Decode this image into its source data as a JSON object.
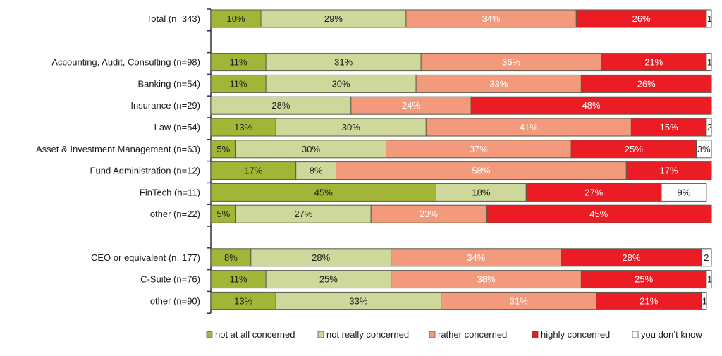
{
  "chart_data": {
    "type": "bar",
    "orientation": "horizontal",
    "stacked": "100%",
    "title": "",
    "xlabel": "",
    "ylabel": "",
    "xlim": [
      0,
      100
    ],
    "grid": false,
    "legend_position": "bottom",
    "series": [
      {
        "name": "not at all concerned",
        "color": "#a3b536",
        "label_color": "#1a1a1a"
      },
      {
        "name": "not really concerned",
        "color": "#cfd89b",
        "label_color": "#1a1a1a"
      },
      {
        "name": "rather concerned",
        "color": "#f39a7c",
        "label_color": "#ffffff"
      },
      {
        "name": "highly concerned",
        "color": "#ec1c24",
        "label_color": "#ffffff"
      },
      {
        "name": "you don’t know",
        "color": "#ffffff",
        "label_color": "#1a1a1a"
      }
    ],
    "groups": [
      {
        "rows": [
          {
            "label": "Total (n=343)",
            "values": [
              10,
              29,
              34,
              26,
              1
            ],
            "labels": [
              "10%",
              "29%",
              "34%",
              "26%",
              "1"
            ]
          }
        ]
      },
      {
        "rows": [
          {
            "label": "Accounting, Audit, Consulting (n=98)",
            "values": [
              11,
              31,
              36,
              21,
              1
            ],
            "labels": [
              "11%",
              "31%",
              "36%",
              "21%",
              "1"
            ]
          },
          {
            "label": "Banking (n=54)",
            "values": [
              11,
              30,
              33,
              26,
              0
            ],
            "labels": [
              "11%",
              "30%",
              "33%",
              "26%",
              ""
            ]
          },
          {
            "label": "Insurance (n=29)",
            "values": [
              0,
              28,
              24,
              48,
              0
            ],
            "labels": [
              "",
              "28%",
              "24%",
              "48%",
              ""
            ]
          },
          {
            "label": "Law (n=54)",
            "values": [
              13,
              30,
              41,
              15,
              2
            ],
            "labels": [
              "13%",
              "30%",
              "41%",
              "15%",
              "2"
            ]
          },
          {
            "label": "Asset & Investment Management (n=63)",
            "values": [
              5,
              30,
              37,
              25,
              3
            ],
            "labels": [
              "5%",
              "30%",
              "37%",
              "25%",
              "3%"
            ]
          },
          {
            "label": "Fund Administration (n=12)",
            "values": [
              17,
              8,
              58,
              17,
              0
            ],
            "labels": [
              "17%",
              "8%",
              "58%",
              "17%",
              ""
            ]
          },
          {
            "label": "FinTech (n=11)",
            "values": [
              45,
              18,
              0,
              27,
              9
            ],
            "labels": [
              "45%",
              "18%",
              "",
              "27%",
              "9%"
            ]
          },
          {
            "label": "other (n=22)",
            "values": [
              5,
              27,
              23,
              45,
              0
            ],
            "labels": [
              "5%",
              "27%",
              "23%",
              "45%",
              ""
            ]
          }
        ]
      },
      {
        "rows": [
          {
            "label": "CEO or equivalent (n=177)",
            "values": [
              8,
              28,
              34,
              28,
              2
            ],
            "labels": [
              "8%",
              "28%",
              "34%",
              "28%",
              "2"
            ]
          },
          {
            "label": "C-Suite (n=76)",
            "values": [
              11,
              25,
              38,
              25,
              1
            ],
            "labels": [
              "11%",
              "25%",
              "38%",
              "25%",
              "1"
            ]
          },
          {
            "label": "other (n=90)",
            "values": [
              13,
              33,
              31,
              21,
              1
            ],
            "labels": [
              "13%",
              "33%",
              "31%",
              "21%",
              "1"
            ]
          }
        ]
      }
    ]
  }
}
